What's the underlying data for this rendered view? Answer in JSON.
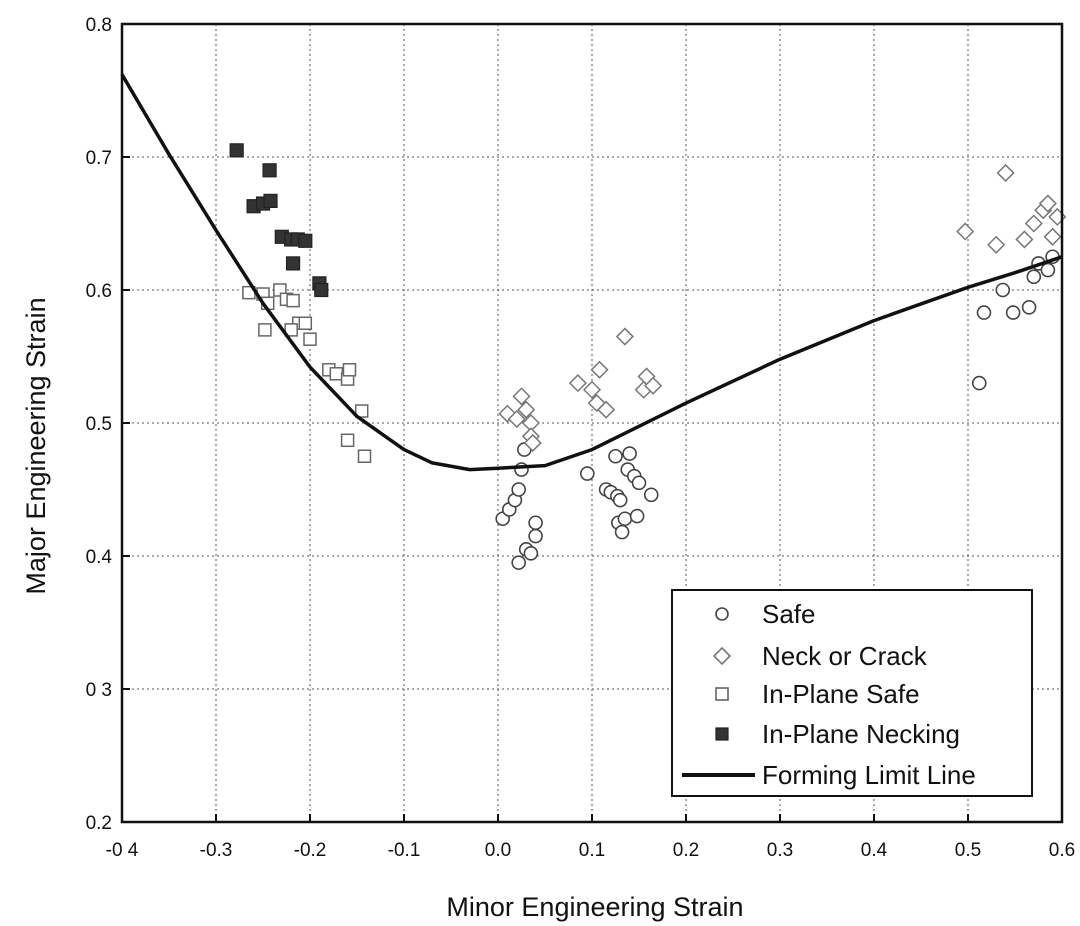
{
  "chart_data": {
    "type": "scatter",
    "title": "",
    "xlabel": "Minor Engineering Strain",
    "ylabel": "Major Engineering Strain",
    "xlim": [
      -0.4,
      0.6
    ],
    "ylim": [
      0.2,
      0.8
    ],
    "x_ticks": [
      -0.4,
      -0.3,
      -0.2,
      -0.1,
      0.0,
      0.1,
      0.2,
      0.3,
      0.4,
      0.5,
      0.6
    ],
    "x_tick_labels": [
      "-0 4",
      "-0.3",
      "-0.2",
      "-0.1",
      "0.0",
      "0.1",
      "0.2",
      "0.3",
      "0.4",
      "0.5",
      "0.6"
    ],
    "y_ticks": [
      0.2,
      0.3,
      0.4,
      0.5,
      0.6,
      0.7,
      0.8
    ],
    "y_tick_labels": [
      "0.2",
      "0 3",
      "0.4",
      "0.5",
      "0.6",
      "0.7",
      "0.8"
    ],
    "grid": true,
    "legend_position": "bottom-right",
    "series": [
      {
        "name": "Safe",
        "marker": "circle",
        "color": "#444444",
        "points": [
          [
            0.005,
            0.428
          ],
          [
            0.012,
            0.435
          ],
          [
            0.018,
            0.442
          ],
          [
            0.022,
            0.45
          ],
          [
            0.025,
            0.465
          ],
          [
            0.028,
            0.48
          ],
          [
            0.022,
            0.395
          ],
          [
            0.03,
            0.405
          ],
          [
            0.04,
            0.415
          ],
          [
            0.04,
            0.425
          ],
          [
            0.035,
            0.402
          ],
          [
            0.095,
            0.462
          ],
          [
            0.115,
            0.45
          ],
          [
            0.12,
            0.448
          ],
          [
            0.125,
            0.475
          ],
          [
            0.127,
            0.445
          ],
          [
            0.13,
            0.442
          ],
          [
            0.128,
            0.425
          ],
          [
            0.132,
            0.418
          ],
          [
            0.135,
            0.428
          ],
          [
            0.138,
            0.465
          ],
          [
            0.14,
            0.477
          ],
          [
            0.145,
            0.46
          ],
          [
            0.15,
            0.455
          ],
          [
            0.148,
            0.43
          ],
          [
            0.163,
            0.446
          ],
          [
            0.512,
            0.53
          ],
          [
            0.517,
            0.583
          ],
          [
            0.537,
            0.6
          ],
          [
            0.548,
            0.583
          ],
          [
            0.565,
            0.587
          ],
          [
            0.57,
            0.61
          ],
          [
            0.575,
            0.62
          ],
          [
            0.585,
            0.615
          ],
          [
            0.59,
            0.625
          ]
        ]
      },
      {
        "name": "Neck or Crack",
        "marker": "diamond",
        "color": "#777777",
        "points": [
          [
            0.01,
            0.507
          ],
          [
            0.02,
            0.503
          ],
          [
            0.025,
            0.52
          ],
          [
            0.03,
            0.51
          ],
          [
            0.035,
            0.5
          ],
          [
            0.035,
            0.49
          ],
          [
            0.037,
            0.485
          ],
          [
            0.085,
            0.53
          ],
          [
            0.1,
            0.525
          ],
          [
            0.108,
            0.54
          ],
          [
            0.105,
            0.515
          ],
          [
            0.115,
            0.51
          ],
          [
            0.135,
            0.565
          ],
          [
            0.155,
            0.525
          ],
          [
            0.158,
            0.535
          ],
          [
            0.165,
            0.528
          ],
          [
            0.497,
            0.644
          ],
          [
            0.53,
            0.634
          ],
          [
            0.54,
            0.688
          ],
          [
            0.56,
            0.638
          ],
          [
            0.57,
            0.65
          ],
          [
            0.58,
            0.66
          ],
          [
            0.585,
            0.665
          ],
          [
            0.59,
            0.64
          ],
          [
            0.595,
            0.655
          ]
        ]
      },
      {
        "name": "In-Plane Safe",
        "marker": "square",
        "color": "#666666",
        "points": [
          [
            -0.265,
            0.598
          ],
          [
            -0.25,
            0.597
          ],
          [
            -0.245,
            0.59
          ],
          [
            -0.232,
            0.6
          ],
          [
            -0.225,
            0.593
          ],
          [
            -0.218,
            0.592
          ],
          [
            -0.212,
            0.575
          ],
          [
            -0.205,
            0.575
          ],
          [
            -0.2,
            0.563
          ],
          [
            -0.248,
            0.57
          ],
          [
            -0.22,
            0.57
          ],
          [
            -0.18,
            0.54
          ],
          [
            -0.172,
            0.537
          ],
          [
            -0.16,
            0.533
          ],
          [
            -0.158,
            0.54
          ],
          [
            -0.145,
            0.509
          ],
          [
            -0.16,
            0.487
          ],
          [
            -0.142,
            0.475
          ]
        ]
      },
      {
        "name": "In-Plane Necking",
        "marker": "filled-square",
        "color": "#333333",
        "points": [
          [
            -0.278,
            0.705
          ],
          [
            -0.243,
            0.69
          ],
          [
            -0.26,
            0.663
          ],
          [
            -0.25,
            0.665
          ],
          [
            -0.242,
            0.667
          ],
          [
            -0.23,
            0.64
          ],
          [
            -0.22,
            0.638
          ],
          [
            -0.213,
            0.638
          ],
          [
            -0.205,
            0.637
          ],
          [
            -0.218,
            0.62
          ],
          [
            -0.19,
            0.605
          ],
          [
            -0.188,
            0.6
          ]
        ]
      }
    ],
    "line": {
      "name": "Forming Limit Line",
      "color": "#111111",
      "points": [
        [
          -0.4,
          0.762
        ],
        [
          -0.35,
          0.702
        ],
        [
          -0.3,
          0.645
        ],
        [
          -0.25,
          0.59
        ],
        [
          -0.2,
          0.542
        ],
        [
          -0.15,
          0.505
        ],
        [
          -0.1,
          0.48
        ],
        [
          -0.07,
          0.47
        ],
        [
          -0.03,
          0.465
        ],
        [
          0.0,
          0.466
        ],
        [
          0.05,
          0.468
        ],
        [
          0.1,
          0.48
        ],
        [
          0.2,
          0.515
        ],
        [
          0.3,
          0.548
        ],
        [
          0.4,
          0.577
        ],
        [
          0.5,
          0.602
        ],
        [
          0.55,
          0.613
        ],
        [
          0.6,
          0.625
        ]
      ]
    }
  }
}
